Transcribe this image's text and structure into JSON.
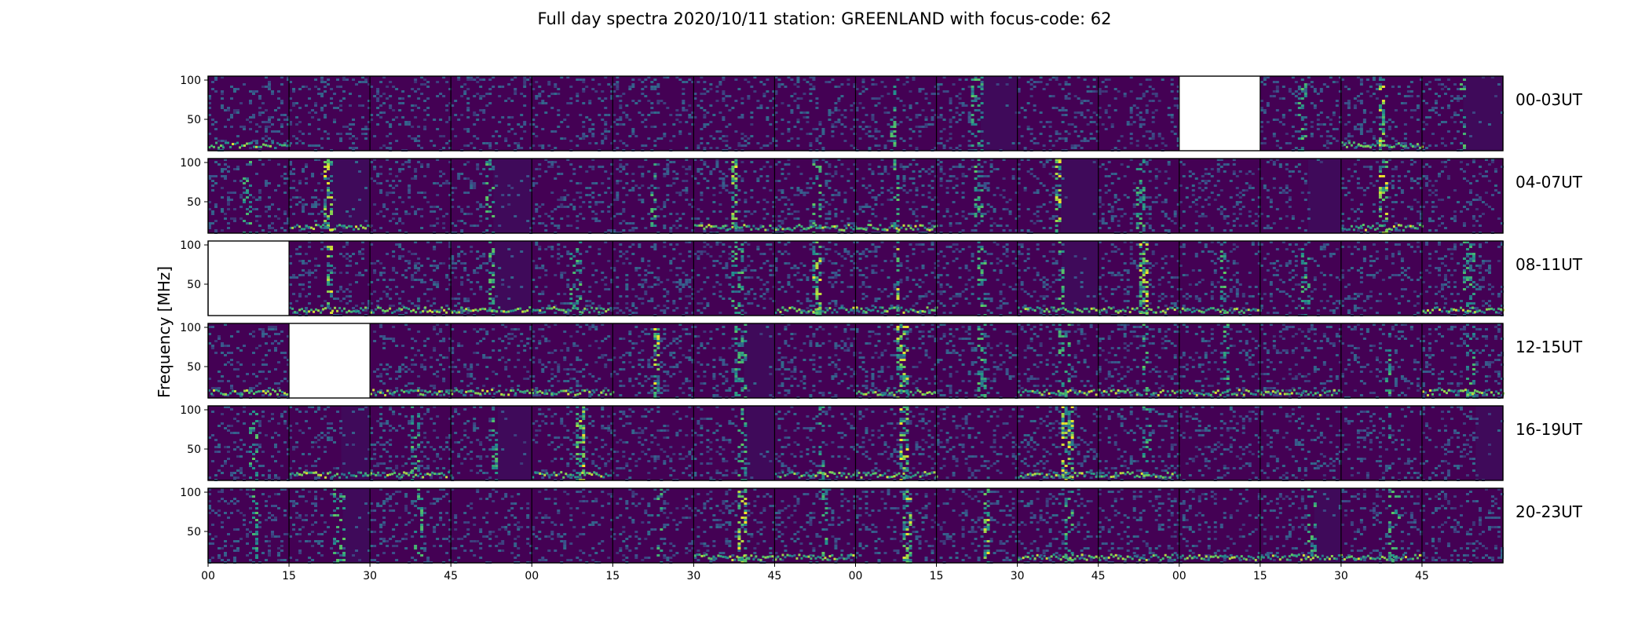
{
  "chart_data": {
    "type": "heatmap",
    "title": "Full day spectra 2020/10/11 station: GREENLAND with focus-code: 62",
    "ylabel": "Frequency [MHz]",
    "xlabel": "",
    "y_ticks": [
      "100",
      "50"
    ],
    "ylim": [
      10,
      105
    ],
    "x_ticks": [
      "00",
      "15",
      "30",
      "45",
      "00",
      "15",
      "30",
      "45",
      "00",
      "15",
      "30",
      "45",
      "00",
      "15",
      "30",
      "45"
    ],
    "colormap": "viridis",
    "colors": [
      "#440154",
      "#3b528b",
      "#21918c",
      "#5ec962",
      "#fde725"
    ],
    "rows": [
      {
        "label": "00-03UT",
        "missing_panels": [
          12
        ],
        "burst_panels": [
          8,
          9,
          13,
          14,
          15
        ],
        "strong_panels": [
          14
        ],
        "dark_panels": [
          9,
          15
        ],
        "bottom_band_panels": [
          0,
          14
        ]
      },
      {
        "label": "04-07UT",
        "missing_panels": [],
        "burst_panels": [
          0,
          1,
          3,
          5,
          6,
          7,
          8,
          9,
          10,
          11,
          14
        ],
        "strong_panels": [
          1,
          6,
          10,
          14
        ],
        "dark_panels": [
          1,
          3,
          10,
          13
        ],
        "bottom_band_panels": [
          1,
          6,
          7,
          8,
          14
        ]
      },
      {
        "label": "08-11UT",
        "missing_panels": [
          0
        ],
        "burst_panels": [
          1,
          3,
          4,
          6,
          7,
          8,
          9,
          10,
          11,
          12,
          13,
          15
        ],
        "strong_panels": [
          1,
          7,
          8,
          11
        ],
        "dark_panels": [
          3,
          10
        ],
        "bottom_band_panels": [
          1,
          2,
          3,
          4,
          7,
          8,
          10,
          11,
          12,
          15
        ]
      },
      {
        "label": "12-15UT",
        "missing_panels": [
          1
        ],
        "burst_panels": [
          5,
          6,
          8,
          9,
          10,
          11,
          12,
          14,
          15
        ],
        "strong_panels": [
          5,
          8
        ],
        "dark_panels": [
          6
        ],
        "bottom_band_panels": [
          0,
          2,
          3,
          4,
          8,
          10,
          11,
          12,
          13,
          15
        ]
      },
      {
        "label": "16-19UT",
        "missing_panels": [],
        "burst_panels": [
          0,
          2,
          3,
          4,
          6,
          7,
          8,
          10,
          11,
          14
        ],
        "strong_panels": [
          4,
          8,
          10
        ],
        "dark_panels": [
          1,
          3,
          6,
          15
        ],
        "bottom_band_panels": [
          1,
          2,
          4,
          7,
          8,
          10,
          11
        ]
      },
      {
        "label": "20-23UT",
        "missing_panels": [],
        "burst_panels": [
          0,
          1,
          2,
          5,
          6,
          7,
          8,
          9,
          10,
          13,
          14
        ],
        "strong_panels": [
          6,
          8,
          9
        ],
        "dark_panels": [
          1,
          13
        ],
        "bottom_band_panels": [
          6,
          7,
          10,
          11,
          12,
          13,
          14
        ]
      }
    ]
  }
}
